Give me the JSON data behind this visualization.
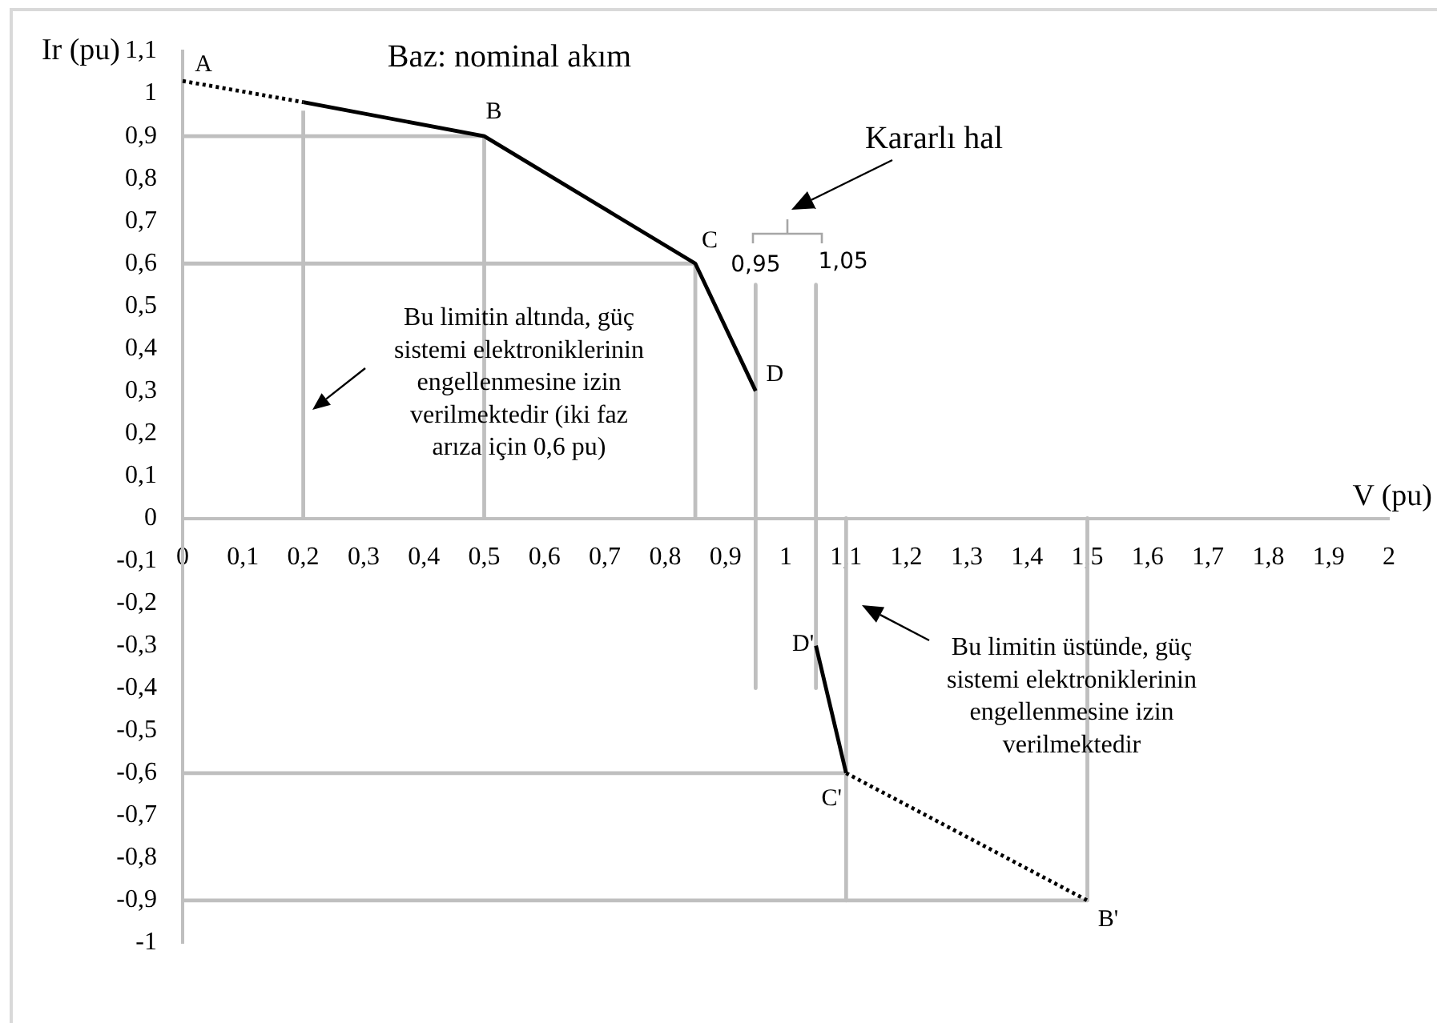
{
  "chart_data": {
    "type": "line",
    "xlabel": "V (pu)",
    "ylabel": "Ir (pu)",
    "marker": "none",
    "line_style": "solid",
    "xlim": [
      0,
      2
    ],
    "xticks": [
      0,
      {
        "value": 0.1,
        "label": "0,1"
      },
      {
        "value": 0.2,
        "label": "0,2"
      },
      {
        "value": 0.3,
        "label": "0,3"
      },
      {
        "value": 0.4,
        "label": "0,4"
      },
      {
        "value": 0.5,
        "label": "0,5"
      },
      {
        "value": 0.6,
        "label": "0,6"
      },
      {
        "value": 0.7,
        "label": "0,7"
      },
      {
        "value": 0.8,
        "label": "0,8"
      },
      {
        "value": 0.9,
        "label": "0,9"
      },
      1,
      {
        "value": 1.1,
        "label": "1,1"
      },
      {
        "value": 1.2,
        "label": "1,2"
      },
      {
        "value": 1.3,
        "label": "1,3"
      },
      {
        "value": 1.4,
        "label": "1,4"
      },
      {
        "value": 1.5,
        "label": "1,5"
      },
      {
        "value": 1.6,
        "label": "1,6"
      },
      {
        "value": 1.7,
        "label": "1,7"
      },
      {
        "value": 1.8,
        "label": "1,8"
      },
      {
        "value": 1.9,
        "label": "1,9"
      },
      2
    ],
    "ylim": [
      -1,
      1.1
    ],
    "yticks": [
      -1,
      {
        "value": -0.9,
        "label": "-0,9"
      },
      {
        "value": -0.8,
        "label": "-0,8"
      },
      {
        "value": -0.7,
        "label": "-0,7"
      },
      {
        "value": -0.6,
        "label": "-0,6"
      },
      {
        "value": -0.5,
        "label": "-0,5"
      },
      {
        "value": -0.4,
        "label": "-0,4"
      },
      {
        "value": -0.3,
        "label": "-0,3"
      },
      {
        "value": -0.2,
        "label": "-0,2"
      },
      {
        "value": -0.1,
        "label": "-0,1"
      },
      0,
      {
        "value": 0.1,
        "label": "0,1"
      },
      {
        "value": 0.2,
        "label": "0,2"
      },
      {
        "value": 0.3,
        "label": "0,3"
      },
      {
        "value": 0.4,
        "label": "0,4"
      },
      {
        "value": 0.5,
        "label": "0,5"
      },
      {
        "value": 0.6,
        "label": "0,6"
      },
      {
        "value": 0.7,
        "label": "0,7"
      },
      {
        "value": 0.8,
        "label": "0,8"
      },
      {
        "value": 0.9,
        "label": "0,9"
      },
      1,
      {
        "value": 1.1,
        "label": "1,1"
      }
    ],
    "series": [
      {
        "color": "#000000",
        "line_style": "dotted",
        "x": [
          0,
          0.2
        ],
        "values": [
          1.03,
          0.98
        ]
      },
      {
        "color": "#000000",
        "x": [
          0.2,
          0.5,
          0.85,
          0.95
        ],
        "values": [
          0.98,
          0.9,
          0.6,
          0.3
        ]
      },
      {
        "color": "#000000",
        "x": [
          1.05,
          1.1
        ],
        "values": [
          -0.3,
          -0.6
        ]
      },
      {
        "color": "#000000",
        "line_style": "dotted",
        "x": [
          1.1,
          1.5
        ],
        "values": [
          -0.6,
          -0.9
        ]
      },
      {
        "color": "#bfbfbf",
        "x": [
          0,
          0.5
        ],
        "values": [
          0.9,
          0.9
        ]
      },
      {
        "color": "#bfbfbf",
        "x": [
          0,
          0.85
        ],
        "values": [
          0.6,
          0.6
        ]
      },
      {
        "color": "#bfbfbf",
        "x": [
          0,
          1.1
        ],
        "values": [
          -0.6,
          -0.6
        ]
      },
      {
        "color": "#bfbfbf",
        "x": [
          0,
          1.5
        ],
        "values": [
          -0.9,
          -0.9
        ]
      },
      {
        "color": "#bfbfbf",
        "x": [
          0.2,
          0.2
        ],
        "values": [
          0,
          0.96
        ]
      },
      {
        "color": "#bfbfbf",
        "x": [
          0.5,
          0.5
        ],
        "values": [
          0,
          0.9
        ]
      },
      {
        "color": "#bfbfbf",
        "x": [
          0.85,
          0.85
        ],
        "values": [
          0,
          0.6
        ]
      },
      {
        "color": "#bfbfbf",
        "x": [
          0.95,
          0.95
        ],
        "values": [
          0.55,
          -0.4
        ]
      },
      {
        "color": "#bfbfbf",
        "x": [
          1.05,
          1.05
        ],
        "values": [
          0.55,
          -0.4
        ]
      },
      {
        "color": "#bfbfbf",
        "x": [
          1.1,
          1.1
        ],
        "values": [
          0,
          -0.9
        ]
      },
      {
        "color": "#bfbfbf",
        "x": [
          1.5,
          1.5
        ],
        "values": [
          0,
          -0.9
        ]
      }
    ],
    "annotations": [
      {
        "text": "A",
        "x": 0,
        "y": 1.03
      },
      {
        "text": "B",
        "x": 0.5,
        "y": 0.9
      },
      {
        "text": "C",
        "x": 0.85,
        "y": 0.6
      },
      {
        "text": "D",
        "x": 0.95,
        "y": 0.3
      },
      {
        "text": "D'",
        "x": 1.05,
        "y": -0.3
      },
      {
        "text": "C'",
        "x": 1.1,
        "y": -0.6
      },
      {
        "text": "B'",
        "x": 1.5,
        "y": -0.9
      },
      {
        "text": "0,95",
        "x": 0.95,
        "y": 0.55
      },
      {
        "text": "1,05",
        "x": 1.05,
        "y": 0.55
      },
      "Baz: nominal akım",
      "Kararlı hal",
      "Bu limitin altında, güç sistemi elektroniklerinin engellenmesine izin verilmektedir (iki faz arıza için 0,6 pu)",
      "Bu limitin üstünde, güç sistemi elektroniklerinin engellenmesine izin verilmektedir"
    ]
  }
}
